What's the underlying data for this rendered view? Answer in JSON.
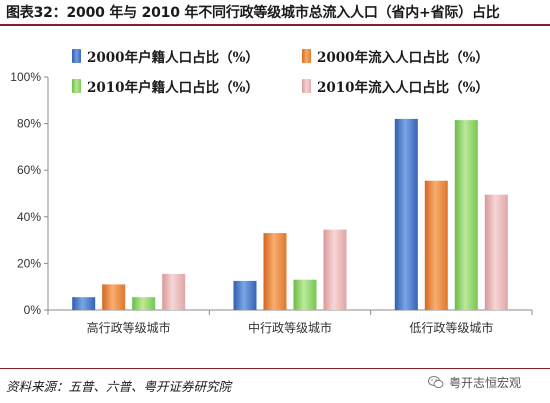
{
  "header": {
    "title": "图表32：2000 年与 2010 年不同行政等级城市总流入人口（省内+省际）占比"
  },
  "footer": {
    "source": "资料来源：五普、六普、粤开证券研究院",
    "watermark": "粤开志恒宏观"
  },
  "colors": {
    "title_rule": "#8a1e22",
    "series": [
      "#4a7cc9",
      "#ef8a3e",
      "#8fd16b",
      "#ecb5b5"
    ]
  },
  "icons": {
    "watermark": "wechat-icon"
  },
  "chart_data": {
    "type": "bar",
    "categories": [
      "高行政等级城市",
      "中行政等级城市",
      "低行政等级城市"
    ],
    "series": [
      {
        "name": "2000年户籍人口占比（%）",
        "values": [
          5.5,
          12.5,
          82
        ]
      },
      {
        "name": "2000年流入人口占比（%）",
        "values": [
          11,
          33,
          55.5
        ]
      },
      {
        "name": "2010年户籍人口占比（%）",
        "values": [
          5.5,
          13,
          81.5
        ]
      },
      {
        "name": "2010年流入人口占比（%）",
        "values": [
          15.5,
          34.5,
          49.5
        ]
      }
    ],
    "yticks": [
      "0%",
      "20%",
      "40%",
      "60%",
      "80%",
      "100%"
    ],
    "ylim": [
      0,
      100
    ],
    "legend": "top",
    "grid": false
  }
}
